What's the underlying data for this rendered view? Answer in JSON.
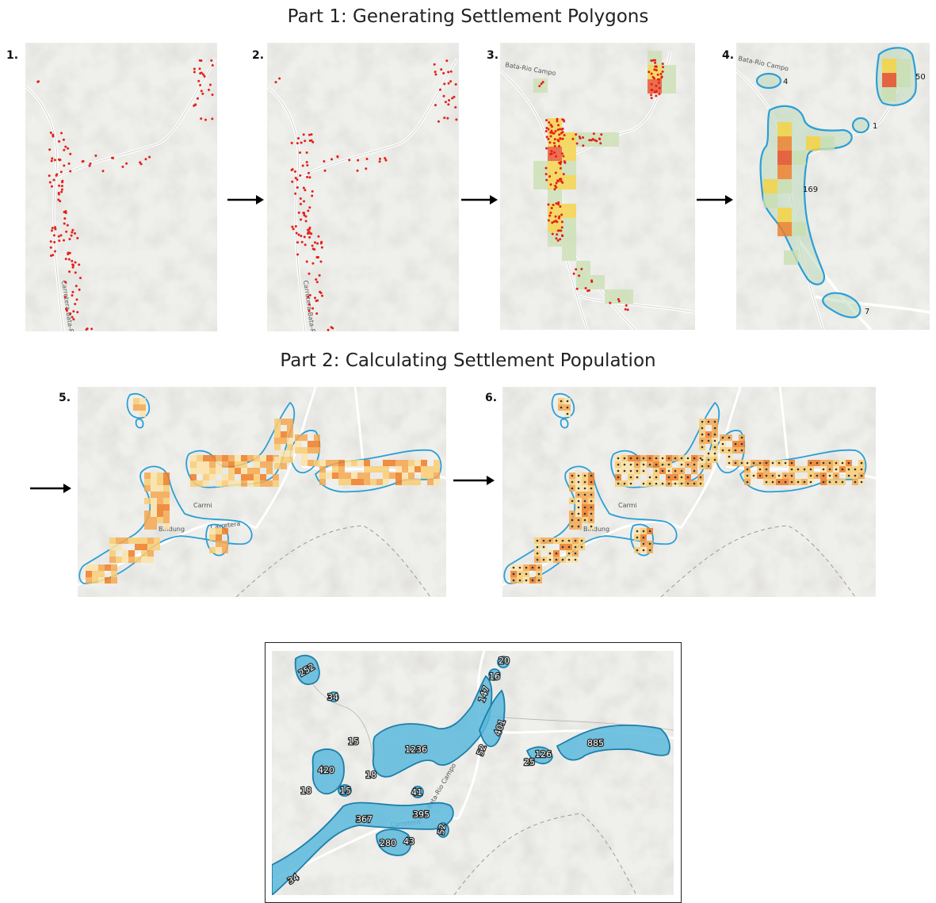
{
  "titles": {
    "part1": "Part 1: Generating Settlement Polygons",
    "part2": "Part 2: Calculating Settlement Population"
  },
  "steps": [
    "1.",
    "2.",
    "3.",
    "4.",
    "5.",
    "6."
  ],
  "roads": {
    "main": "Carretera Bata-Rio Campo",
    "short": "Carretera",
    "bata": "Bata-Rio Campo",
    "place1": "Bindung",
    "place2": "Carmi"
  },
  "panel4_labels": [
    "4",
    "50",
    "1",
    "169",
    "7"
  ],
  "final_labels": [
    "252",
    "34",
    "15",
    "18",
    "420",
    "18",
    "15",
    "1236",
    "41",
    "367",
    "395",
    "280",
    "43",
    "52",
    "147",
    "16",
    "20",
    "52",
    "401",
    "25",
    "126",
    "885",
    "34"
  ],
  "colors": {
    "point": "#e32119",
    "outline": "#2a9fd6",
    "fill_blue": "#5bb8dd",
    "heat_low": "#c9dfb0",
    "heat_mid": "#f6d23a",
    "heat_high": "#f07c24",
    "heat_max": "#e8451e",
    "road": "#ffffff",
    "terrain": "#efefed"
  }
}
